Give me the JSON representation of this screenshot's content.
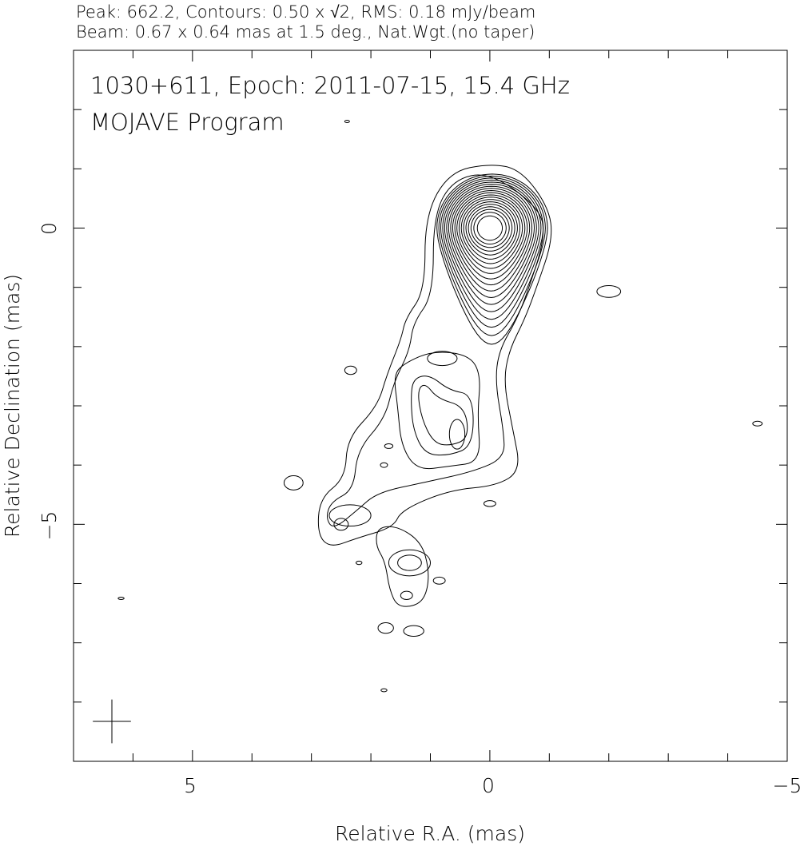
{
  "header": {
    "line1": "Peak: 662.2, Contours: 0.50 x √2, RMS: 0.18 mJy/beam",
    "line2": "Beam: 0.67 x 0.64 mas at 1.5 deg., Nat.Wgt.(no taper)"
  },
  "chart_data": {
    "type": "contour",
    "title": "1030+611, Epoch: 2011-07-15, 15.4 GHz",
    "subtitle": "MOJAVE Program",
    "xlabel": "Relative R.A. (mas)",
    "ylabel": "Relative Declination (mas)",
    "xlim": [
      7,
      -5
    ],
    "ylim": [
      -9,
      3
    ],
    "x_ticks_major": [
      5,
      0,
      -5
    ],
    "x_tick_labels": [
      "5",
      "0",
      "−5"
    ],
    "y_ticks_major": [
      0,
      -5
    ],
    "y_tick_labels": [
      "0",
      "−5"
    ],
    "minor_tick_step": 1,
    "grid": false,
    "peak_mJy_per_beam": 662.2,
    "lowest_contour_mJy_per_beam": 0.5,
    "contour_factor": "√2",
    "rms_mJy_per_beam": 0.18,
    "beam": {
      "major_mas": 0.67,
      "minor_mas": 0.64,
      "pa_deg": 1.5,
      "weighting": "Nat.Wgt.(no taper)"
    },
    "core_position": [
      0,
      0
    ],
    "contour_polygons": [
      {
        "level": 1,
        "points": [
          [
            0,
            1.09
          ],
          [
            -0.52,
            0.99
          ],
          [
            -0.99,
            0.35
          ],
          [
            -1.06,
            -0.19
          ],
          [
            -0.79,
            -0.99
          ],
          [
            -0.59,
            -1.53
          ],
          [
            -0.32,
            -2.07
          ],
          [
            -0.23,
            -2.61
          ],
          [
            -0.39,
            -3.41
          ],
          [
            -0.52,
            -4.09
          ],
          [
            -0.12,
            -4.35
          ],
          [
            0.68,
            -4.42
          ],
          [
            1.49,
            -4.76
          ],
          [
            1.62,
            -5.05
          ],
          [
            2.23,
            -5.23
          ],
          [
            2.69,
            -5.4
          ],
          [
            2.9,
            -5.16
          ],
          [
            2.86,
            -4.56
          ],
          [
            2.43,
            -4.22
          ],
          [
            2.4,
            -3.55
          ],
          [
            1.89,
            -3.01
          ],
          [
            1.73,
            -2.47
          ],
          [
            1.49,
            -1.87
          ],
          [
            1.42,
            -1.53
          ],
          [
            1.09,
            -1.06
          ],
          [
            1.09,
            0.22
          ],
          [
            0.68,
            0.95
          ]
        ]
      },
      {
        "level": 2,
        "points": [
          [
            0,
            0.95
          ],
          [
            -0.86,
            0.32
          ],
          [
            -0.92,
            -0.19
          ],
          [
            -0.66,
            -1.0
          ],
          [
            -0.46,
            -1.53
          ],
          [
            -0.15,
            -2.07
          ],
          [
            -0.09,
            -2.61
          ],
          [
            -0.23,
            -3.41
          ],
          [
            -0.25,
            -3.88
          ],
          [
            0.28,
            -4.11
          ],
          [
            1.09,
            -4.29
          ],
          [
            1.89,
            -4.46
          ],
          [
            2.23,
            -4.76
          ],
          [
            2.63,
            -5.09
          ],
          [
            2.76,
            -4.89
          ],
          [
            2.67,
            -4.62
          ],
          [
            2.29,
            -4.42
          ],
          [
            2.23,
            -3.75
          ],
          [
            1.76,
            -3.21
          ],
          [
            1.62,
            -2.61
          ],
          [
            1.35,
            -2.07
          ],
          [
            1.29,
            -1.6
          ],
          [
            0.95,
            -1.13
          ],
          [
            0.95,
            0.22
          ],
          [
            0.62,
            0.82
          ]
        ]
      },
      {
        "level": 3,
        "points": [
          [
            1.42,
            -2.27
          ],
          [
            0.95,
            -2.07
          ],
          [
            0.35,
            -2.14
          ],
          [
            0.15,
            -2.47
          ],
          [
            0.21,
            -3.15
          ],
          [
            0.15,
            -3.95
          ],
          [
            0.68,
            -4.02
          ],
          [
            1.22,
            -4.09
          ],
          [
            1.49,
            -3.68
          ],
          [
            1.55,
            -3.01
          ],
          [
            1.62,
            -2.47
          ]
        ]
      },
      {
        "level": 4,
        "points": [
          [
            1.29,
            -2.54
          ],
          [
            1.02,
            -2.47
          ],
          [
            0.68,
            -2.74
          ],
          [
            0.28,
            -2.81
          ],
          [
            0.28,
            -3.68
          ],
          [
            0.68,
            -3.84
          ],
          [
            1.09,
            -3.82
          ],
          [
            1.29,
            -3.41
          ],
          [
            1.33,
            -2.88
          ]
        ]
      },
      {
        "level": 5,
        "points": [
          [
            1.22,
            -2.74
          ],
          [
            1.09,
            -2.61
          ],
          [
            0.88,
            -2.88
          ],
          [
            0.42,
            -3.01
          ],
          [
            0.35,
            -3.55
          ],
          [
            0.68,
            -3.68
          ],
          [
            0.95,
            -3.62
          ],
          [
            1.15,
            -3.21
          ]
        ]
      },
      {
        "level": 1,
        "points": [
          [
            1.89,
            -5.05
          ],
          [
            1.55,
            -5.03
          ],
          [
            1.15,
            -5.3
          ],
          [
            1.02,
            -5.77
          ],
          [
            1.06,
            -6.17
          ],
          [
            1.22,
            -6.37
          ],
          [
            1.55,
            -6.4
          ],
          [
            1.69,
            -6.1
          ],
          [
            1.76,
            -5.63
          ],
          [
            1.92,
            -5.36
          ]
        ]
      }
    ],
    "contour_blobs": [
      [
        0.55,
        -3.48,
        0.13,
        0.25
      ],
      [
        0.8,
        -2.2,
        0.25,
        0.12
      ],
      [
        1.35,
        -5.65,
        0.35,
        0.22
      ],
      [
        1.35,
        -5.65,
        0.2,
        0.13
      ],
      [
        1.4,
        -6.2,
        0.1,
        0.07
      ],
      [
        3.3,
        -4.3,
        0.16,
        0.12
      ],
      [
        -2.0,
        -1.07,
        0.2,
        0.1
      ],
      [
        2.34,
        -2.4,
        0.1,
        0.07
      ],
      [
        -4.5,
        -3.3,
        0.08,
        0.04
      ],
      [
        0.0,
        -4.65,
        0.1,
        0.05
      ],
      [
        1.75,
        -6.75,
        0.13,
        0.09
      ],
      [
        1.28,
        -6.8,
        0.17,
        0.09
      ],
      [
        1.78,
        -7.8,
        0.05,
        0.025
      ],
      [
        6.2,
        -6.25,
        0.05,
        0.02
      ],
      [
        2.4,
        1.8,
        0.04,
        0.02
      ],
      [
        0.85,
        -5.95,
        0.1,
        0.06
      ],
      [
        2.2,
        -5.65,
        0.05,
        0.03
      ],
      [
        1.78,
        -4.0,
        0.06,
        0.04
      ],
      [
        1.7,
        -3.68,
        0.07,
        0.04
      ],
      [
        2.5,
        -5.0,
        0.12,
        0.1
      ],
      [
        2.35,
        -4.85,
        0.35,
        0.18
      ]
    ]
  }
}
